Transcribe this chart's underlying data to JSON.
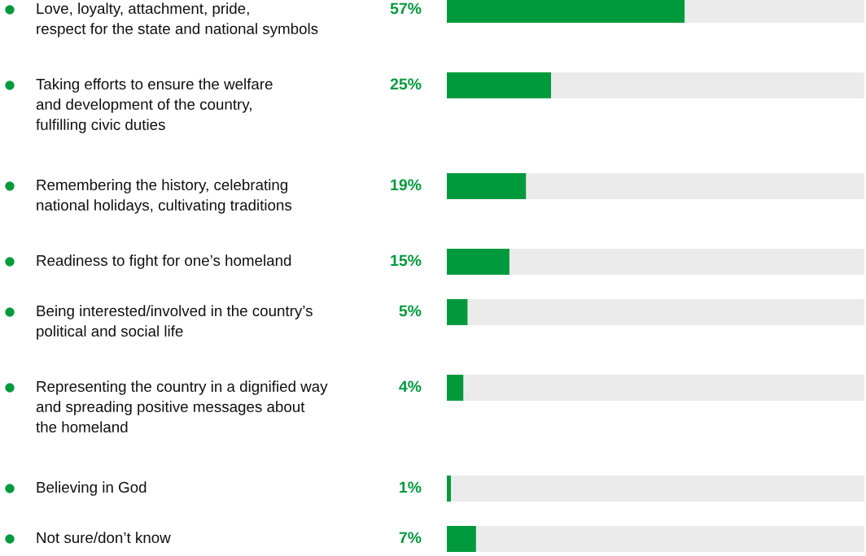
{
  "chart_data": {
    "type": "bar",
    "orientation": "horizontal",
    "stacked": true,
    "categories": [
      "Love, loyalty, attachment, pride,\nrespect for the state and national symbols",
      "Taking efforts to ensure the welfare\nand development of the country,\nfulfilling civic duties",
      "Remembering the history, celebrating\nnational holidays, cultivating traditions",
      "Readiness to fight for one’s homeland",
      "Being interested/involved in the country’s\npolitical and social life",
      "Representing the country in a dignified way\nand spreading positive messages about\nthe homeland",
      "Believing in God",
      "Not sure/don’t know"
    ],
    "series": [
      {
        "color": "#009a3d",
        "values": [
          57,
          25,
          19,
          15,
          5,
          4,
          1,
          7
        ],
        "value_labels": [
          "57%",
          "25%",
          "19%",
          "15%",
          "5%",
          "4%",
          "1%",
          "7%"
        ]
      },
      {
        "color": "#ebebeb",
        "values": [
          43,
          75,
          81,
          85,
          95,
          96,
          99,
          93
        ]
      }
    ],
    "xlim": [
      0,
      100
    ],
    "tick_labels": "y"
  }
}
